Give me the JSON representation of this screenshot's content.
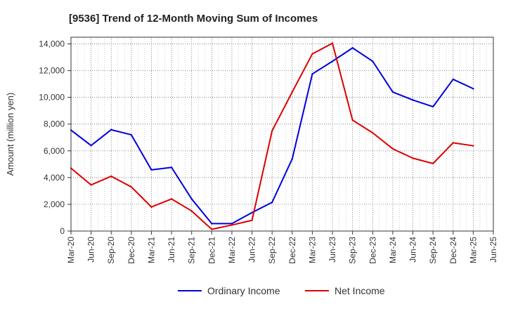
{
  "chart_data": {
    "type": "line",
    "title": "[9536]  Trend of 12-Month Moving Sum of Incomes",
    "xlabel": "",
    "ylabel": "Amount (million yen)",
    "ylim": [
      0,
      14500
    ],
    "yticks": [
      0,
      2000,
      4000,
      6000,
      8000,
      10000,
      12000,
      14000
    ],
    "ytick_labels": [
      "0",
      "2,000",
      "4,000",
      "6,000",
      "8,000",
      "10,000",
      "12,000",
      "14,000"
    ],
    "categories": [
      "Mar-20",
      "Jun-20",
      "Sep-20",
      "Dec-20",
      "Mar-21",
      "Jun-21",
      "Sep-21",
      "Dec-21",
      "Mar-22",
      "Jun-22",
      "Sep-22",
      "Dec-22",
      "Mar-23",
      "Jun-23",
      "Sep-23",
      "Dec-23",
      "Mar-24",
      "Jun-24",
      "Sep-24",
      "Dec-24",
      "Mar-25",
      "Jun-25"
    ],
    "grid": true,
    "legend_position": "bottom-center",
    "series": [
      {
        "name": "Ordinary Income",
        "color": "#0000dd",
        "values": [
          7550,
          6400,
          7580,
          7200,
          4580,
          4760,
          2400,
          560,
          560,
          1380,
          2150,
          5400,
          11750,
          12700,
          13700,
          12700,
          10400,
          9800,
          9300,
          11350,
          10650,
          null
        ]
      },
      {
        "name": "Net Income",
        "color": "#dd0000",
        "values": [
          4700,
          3450,
          4100,
          3300,
          1800,
          2400,
          1500,
          130,
          450,
          800,
          7500,
          10400,
          13250,
          14050,
          8300,
          7350,
          6150,
          5450,
          5050,
          6600,
          6380,
          null
        ]
      }
    ]
  }
}
